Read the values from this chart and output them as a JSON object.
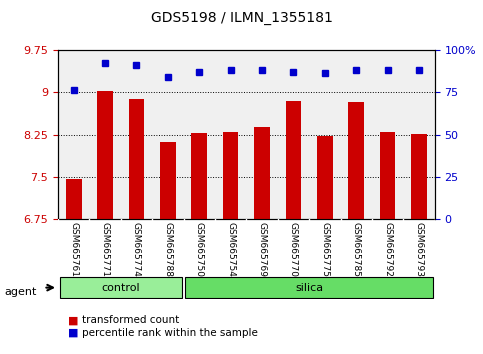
{
  "title": "GDS5198 / ILMN_1355181",
  "samples": [
    "GSM665761",
    "GSM665771",
    "GSM665774",
    "GSM665788",
    "GSM665750",
    "GSM665754",
    "GSM665769",
    "GSM665770",
    "GSM665775",
    "GSM665785",
    "GSM665792",
    "GSM665793"
  ],
  "transformed_count": [
    7.47,
    9.02,
    8.88,
    8.12,
    8.28,
    8.29,
    8.38,
    8.85,
    8.22,
    8.83,
    8.29,
    8.26
  ],
  "percentile_rank": [
    76,
    92,
    91,
    84,
    87,
    88,
    88,
    87,
    86,
    88,
    88,
    88
  ],
  "bar_color": "#cc0000",
  "dot_color": "#0000cc",
  "ylim_left": [
    6.75,
    9.75
  ],
  "ylim_right": [
    0,
    100
  ],
  "yticks_left": [
    6.75,
    7.5,
    8.25,
    9.0,
    9.75
  ],
  "yticks_right": [
    0,
    25,
    50,
    75,
    100
  ],
  "ytick_labels_left": [
    "6.75",
    "7.5",
    "8.25",
    "9",
    "9.75"
  ],
  "ytick_labels_right": [
    "0",
    "25",
    "50",
    "75",
    "100%"
  ],
  "groups": [
    {
      "label": "control",
      "start": 0,
      "end": 4,
      "color": "#99ee99"
    },
    {
      "label": "silica",
      "start": 4,
      "end": 12,
      "color": "#66dd66"
    }
  ],
  "group_row_label": "agent",
  "legend": [
    {
      "color": "#cc0000",
      "label": "transformed count"
    },
    {
      "color": "#0000cc",
      "label": "percentile rank within the sample"
    }
  ],
  "bg_plot": "#f0f0f0",
  "bg_tick_area": "#d0d0d0",
  "grid_color": "black",
  "bar_width": 0.5
}
